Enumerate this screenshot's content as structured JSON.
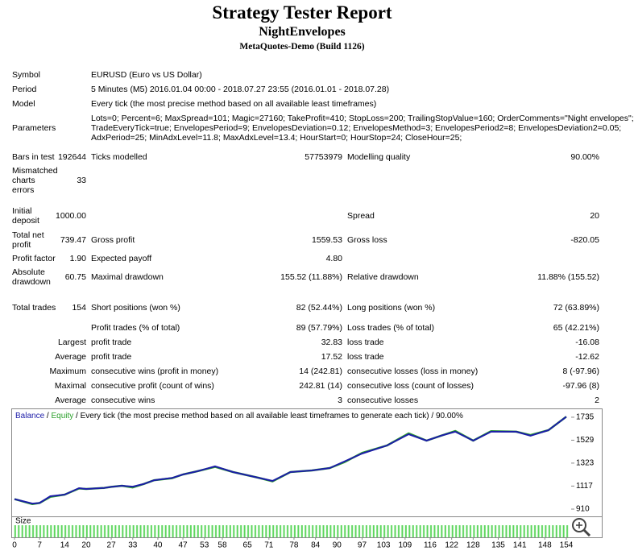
{
  "header": {
    "title": "Strategy Tester Report",
    "subtitle": "NightEnvelopes",
    "build": "MetaQuotes-Demo (Build 1126)"
  },
  "report": {
    "rows": [
      {
        "label": "Symbol",
        "text": [
          "EURUSD (Euro vs US Dollar)"
        ]
      },
      {
        "label": "Period",
        "text": [
          "5 Minutes (M5) 2016.01.04 00:00 - 2018.07.27 23:55 (2016.01.01 - 2018.07.28)"
        ]
      },
      {
        "label": "Model",
        "text": [
          "Every tick (the most precise method based on all available least timeframes)"
        ]
      },
      {
        "label": "Parameters",
        "text": [
          "Lots=0; Percent=6; MaxSpread=101; Magic=27160; TakeProfit=410; StopLoss=200; TrailingStopValue=160; OrderComments=\"Night envelopes\";",
          "TradeEveryTick=true; EnvelopesPeriod=9; EnvelopesDeviation=0.12; EnvelopesMethod=3; EnvelopesPeriod2=8; EnvelopesDeviation2=0.05;",
          "AdxPeriod=25; MinAdxLevel=11.8; MaxAdxLevel=13.4; HourStart=0; HourStop=24; CloseHour=25;"
        ]
      },
      {
        "label": "Bars in test",
        "value": "192644",
        "label2": "Ticks modelled",
        "value2": "57753979",
        "label3": "Modelling quality",
        "value3": "90.00%"
      },
      {
        "label": "Mismatched charts errors",
        "value": "33"
      },
      {
        "label": "Initial deposit",
        "value": "1000.00",
        "label3": "Spread",
        "value3": "20"
      },
      {
        "label": "Total net profit",
        "value": "739.47",
        "label2": "Gross profit",
        "value2": "1559.53",
        "label3": "Gross loss",
        "value3": "-820.05"
      },
      {
        "label": "Profit factor",
        "value": "1.90",
        "label2": "Expected payoff",
        "value2": "4.80"
      },
      {
        "label": "Absolute drawdown",
        "value": "60.75",
        "label2": "Maximal drawdown",
        "value2": "155.52 (11.88%)",
        "label3": "Relative drawdown",
        "value3": "11.88% (155.52)"
      },
      {
        "label": "Total trades",
        "value": "154",
        "label2": "Short positions (won %)",
        "value2": "82 (52.44%)",
        "label3": "Long positions (won %)",
        "value3": "72 (63.89%)"
      },
      {
        "label2": "Profit trades (% of total)",
        "value2": "89 (57.79%)",
        "label3": "Loss trades (% of total)",
        "value3": "65 (42.21%)"
      },
      {
        "prefix": "Largest",
        "label2": "profit trade",
        "value2": "32.83",
        "label3": "loss trade",
        "value3": "-16.08"
      },
      {
        "prefix": "Average",
        "label2": "profit trade",
        "value2": "17.52",
        "label3": "loss trade",
        "value3": "-12.62"
      },
      {
        "prefix": "Maximum",
        "label2": "consecutive wins (profit in money)",
        "value2": "14 (242.81)",
        "label3": "consecutive losses (loss in money)",
        "value3": "8 (-97.96)"
      },
      {
        "prefix": "Maximal",
        "label2": "consecutive profit (count of wins)",
        "value2": "242.81 (14)",
        "label3": "consecutive loss (count of losses)",
        "value3": "-97.96 (8)"
      },
      {
        "prefix": "Average",
        "label2": "consecutive wins",
        "value2": "3",
        "label3": "consecutive losses",
        "value3": "2"
      }
    ]
  },
  "chart_data": {
    "type": "line",
    "legend_note": "Every tick (the most precise method based on all available least timeframes to generate each tick)",
    "quality": "90.00%",
    "size_label": "Size",
    "x": [
      0,
      5,
      7,
      10,
      14,
      18,
      20,
      25,
      27,
      30,
      33,
      36,
      39,
      44,
      47,
      51,
      56,
      61,
      68,
      72,
      77,
      83,
      88,
      92,
      97,
      104,
      110,
      115,
      119,
      123,
      128,
      133,
      140,
      144,
      149,
      154
    ],
    "series": [
      {
        "name": "Balance",
        "color": "#1c1ca8",
        "values": [
          1000,
          960,
          965,
          1026,
          1040,
          1098,
          1091,
          1100,
          1110,
          1120,
          1112,
          1135,
          1170,
          1190,
          1221,
          1250,
          1294,
          1243,
          1192,
          1163,
          1243,
          1257,
          1279,
          1337,
          1409,
          1482,
          1583,
          1525,
          1569,
          1605,
          1525,
          1605,
          1605,
          1569,
          1619,
          1739.47
        ]
      },
      {
        "name": "Equity",
        "color": "#2ca02c",
        "values": [
          1000,
          955,
          965,
          1020,
          1040,
          1095,
          1091,
          1100,
          1110,
          1120,
          1105,
          1135,
          1170,
          1188,
          1221,
          1250,
          1290,
          1243,
          1192,
          1160,
          1243,
          1257,
          1279,
          1330,
          1415,
          1482,
          1590,
          1525,
          1569,
          1612,
          1525,
          1610,
          1605,
          1575,
          1619,
          1739.47
        ]
      }
    ],
    "xlim": [
      0,
      154
    ],
    "ylim": [
      845,
      1807
    ],
    "xticks": [
      0,
      7,
      14,
      20,
      27,
      33,
      40,
      47,
      53,
      58,
      65,
      71,
      78,
      84,
      90,
      97,
      103,
      109,
      116,
      122,
      128,
      135,
      141,
      148,
      154
    ],
    "yticks": [
      910,
      1117,
      1323,
      1529,
      1735
    ]
  }
}
